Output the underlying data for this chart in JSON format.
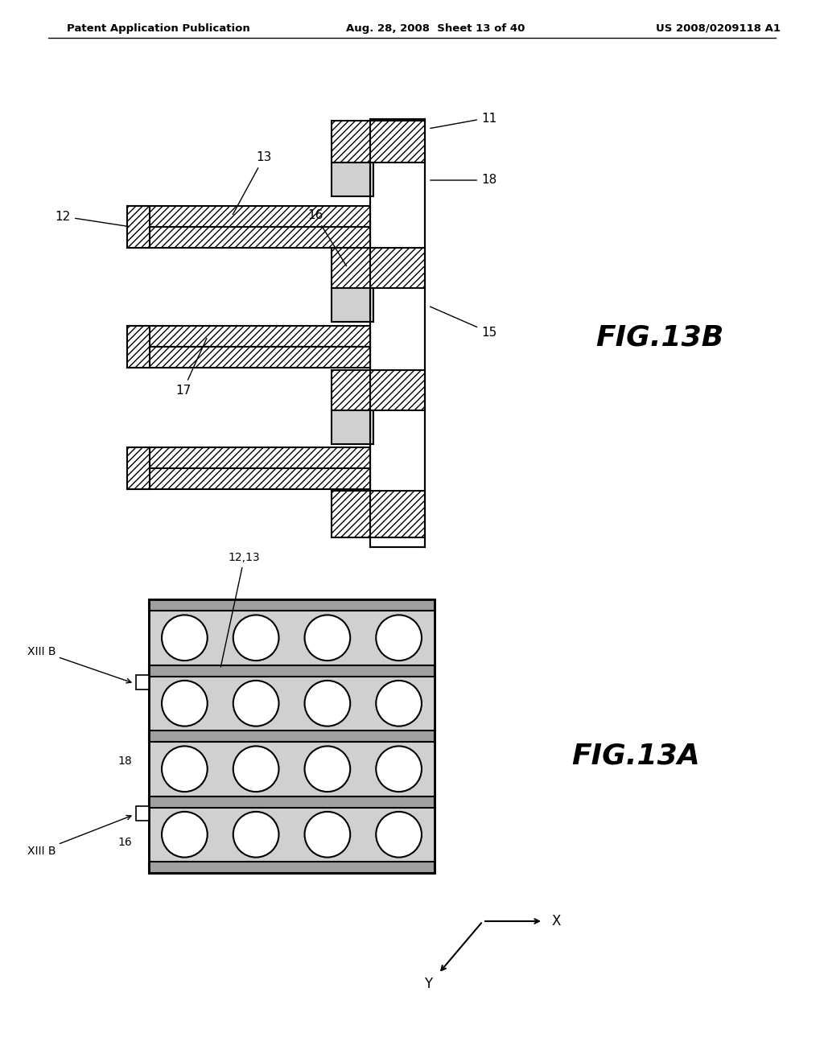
{
  "background_color": "#ffffff",
  "header_left": "Patent Application Publication",
  "header_center": "Aug. 28, 2008  Sheet 13 of 40",
  "header_right": "US 2008/0209118 A1",
  "fig13b_label": "FIG.13B",
  "fig13a_label": "FIG.13A",
  "line_color": "#000000",
  "hatch_fc": "#ffffff",
  "dot_fc": "#d0d0d0",
  "sep_fc": "#a0a0a0",
  "lw": 1.5
}
